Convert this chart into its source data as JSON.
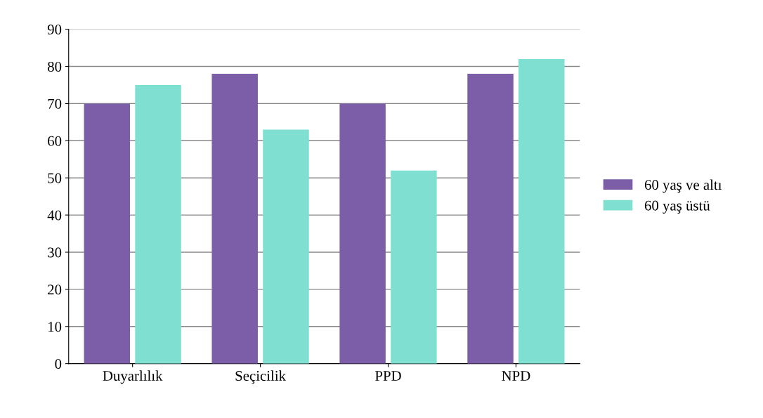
{
  "chart_data": {
    "type": "bar",
    "categories": [
      "Duyarlılık",
      "Seçicilik",
      "PPD",
      "NPD"
    ],
    "series": [
      {
        "name": "60 yaş ve altı",
        "color": "#7b5ea7",
        "values": [
          70,
          78,
          70,
          78
        ]
      },
      {
        "name": "60 yaş üstü",
        "color": "#7fdfd0",
        "values": [
          75,
          63,
          52,
          82
        ]
      }
    ],
    "ylim": [
      0,
      90
    ],
    "yticks": [
      0,
      10,
      20,
      30,
      40,
      50,
      60,
      70,
      80,
      90
    ],
    "grid": "y",
    "legend": "right"
  }
}
